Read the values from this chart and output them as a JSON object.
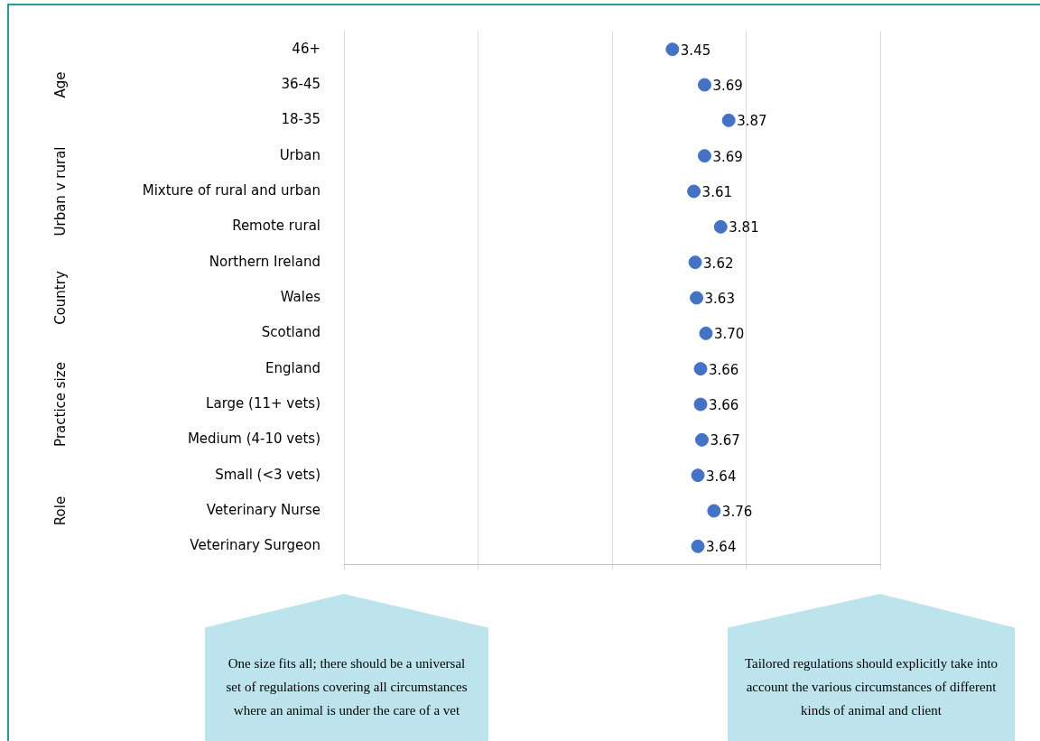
{
  "chart_data": {
    "type": "scatter",
    "orientation": "horizontal",
    "categories": [
      "46+",
      "36-45",
      "18-35",
      "Urban",
      "Mixture of rural and urban",
      "Remote rural",
      "Northern Ireland",
      "Wales",
      "Scotland",
      "England",
      "Large (11+ vets)",
      "Medium (4-10 vets)",
      "Small (<3 vets)",
      "Veterinary Nurse",
      "Veterinary Surgeon"
    ],
    "values": [
      3.45,
      3.69,
      3.87,
      3.69,
      3.61,
      3.81,
      3.62,
      3.63,
      3.7,
      3.66,
      3.66,
      3.67,
      3.64,
      3.76,
      3.64
    ],
    "value_labels": [
      "3.45",
      "3.69",
      "3.87",
      "3.69",
      "3.61",
      "3.81",
      "3.62",
      "3.63",
      "3.70",
      "3.66",
      "3.66",
      "3.67",
      "3.64",
      "3.76",
      "3.64"
    ],
    "color": "#4472c4",
    "marker": "circle",
    "xlim": [
      1,
      5
    ],
    "xticks": [
      {
        "value": 1,
        "label": null
      },
      {
        "value": 2,
        "label": null
      },
      {
        "value": 3,
        "label": null
      },
      {
        "value": 4,
        "label": null
      },
      {
        "value": 5,
        "label": null
      }
    ],
    "tick_labels": "y",
    "grid": "x",
    "legend": false,
    "annotations": [
      "Age",
      "Urban v rural",
      "Country",
      "Practice size",
      "Role",
      "One size fits all; there should be a universal set of regulations covering all circumstances where an animal is under the care of a vet",
      "Tailored regulations should explicitly take into account the various circumstances of different kinds of animal and client"
    ]
  }
}
